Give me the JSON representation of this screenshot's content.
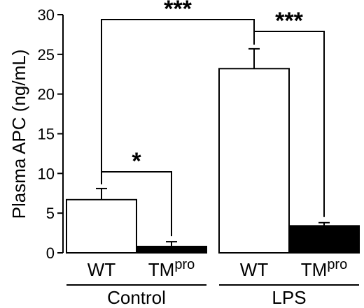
{
  "chart_data": {
    "type": "bar",
    "ylabel": "Plasma APC (ng/mL)",
    "ylim": [
      0,
      30
    ],
    "yticks": [
      0,
      5,
      10,
      15,
      20,
      25,
      30
    ],
    "groups": [
      {
        "name": "Control",
        "bars": [
          {
            "label": "WT",
            "value": 6.7,
            "error": 1.4,
            "fill": "#ffffff"
          },
          {
            "label_main": "TM",
            "label_sup": "pro",
            "value": 0.8,
            "error": 0.6,
            "fill": "#000000"
          }
        ]
      },
      {
        "name": "LPS",
        "bars": [
          {
            "label": "WT",
            "value": 23.2,
            "error": 2.5,
            "fill": "#ffffff"
          },
          {
            "label_main": "TM",
            "label_sup": "pro",
            "value": 3.4,
            "error": 0.4,
            "fill": "#000000"
          }
        ]
      }
    ],
    "significance": [
      {
        "from": "0.0",
        "to": "0.1",
        "label": "*"
      },
      {
        "from": "0.0",
        "to": "1.0",
        "label": "***"
      },
      {
        "from": "1.0",
        "to": "1.1",
        "label": "***"
      }
    ]
  }
}
